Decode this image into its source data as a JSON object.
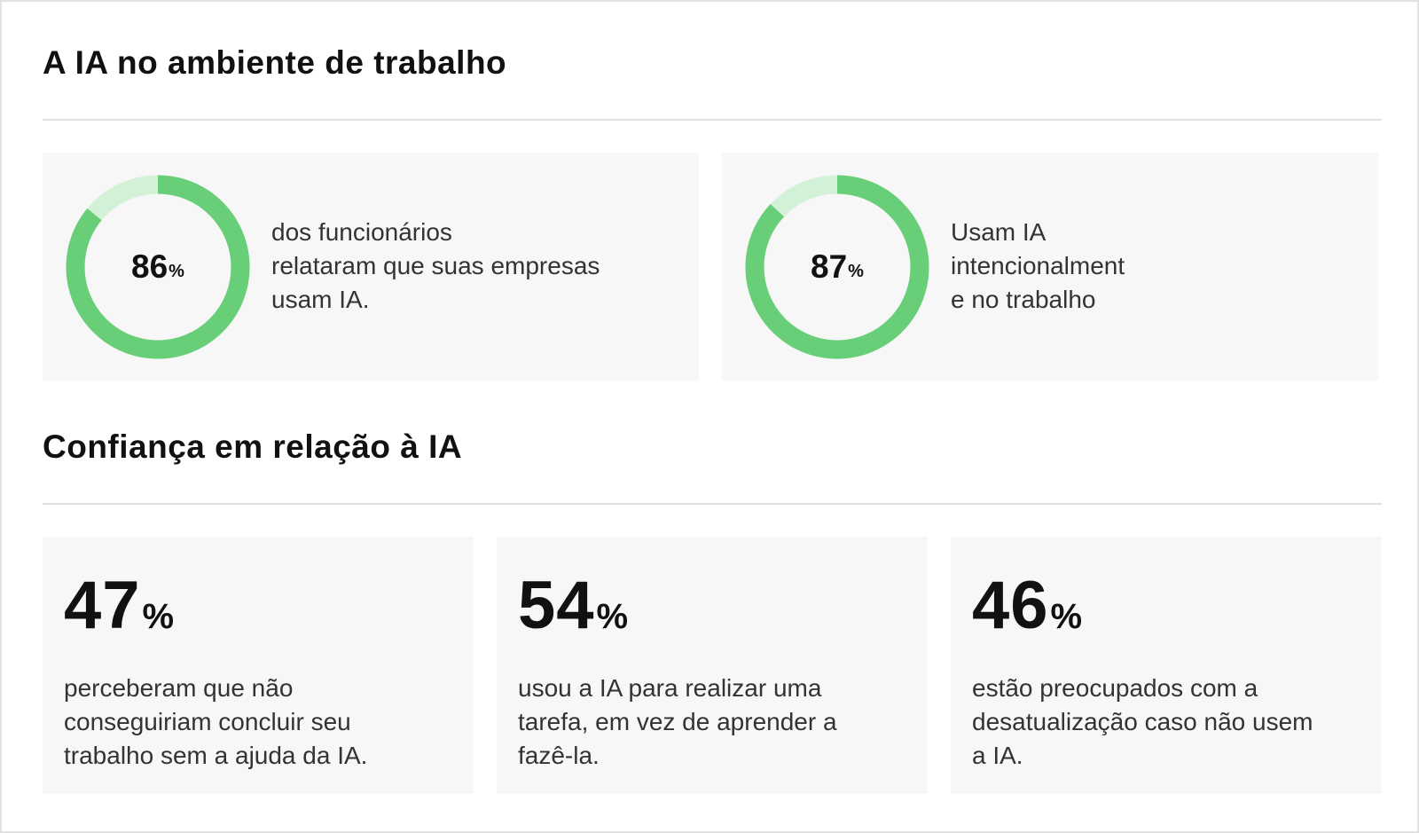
{
  "colors": {
    "ring": "#68cf78",
    "ring_track": "#d3f1d7"
  },
  "sections": {
    "workplace": {
      "title": "A IA no ambiente de trabalho"
    },
    "trust": {
      "title": "Confiança em relação à IA"
    }
  },
  "percent_sign": "%",
  "donuts": [
    {
      "value": 86,
      "value_label": "86",
      "description_lines": [
        "dos funcionários",
        "relataram que suas empresas",
        "usam IA."
      ]
    },
    {
      "value": 87,
      "value_label": "87",
      "description_lines": [
        "Usam IA",
        "intencionalment",
        "e no trabalho"
      ]
    }
  ],
  "stats": [
    {
      "value_label": "47",
      "description_lines": [
        "perceberam que não",
        "conseguiriam concluir seu",
        "trabalho sem a ajuda da IA."
      ]
    },
    {
      "value_label": "54",
      "description_lines": [
        "usou a IA para realizar uma",
        "tarefa, em vez de aprender a",
        "fazê-la."
      ]
    },
    {
      "value_label": "46",
      "description_lines": [
        "estão preocupados com a",
        "desatualização caso não usem",
        "a IA."
      ]
    }
  ],
  "chart_data": [
    {
      "type": "pie",
      "categories": [
        "dos funcionários relataram que suas empresas usam IA."
      ],
      "values": [
        86
      ]
    },
    {
      "type": "pie",
      "categories": [
        "Usam IA intencionalmente no trabalho"
      ],
      "values": [
        87
      ]
    },
    {
      "type": "table",
      "values": [
        47,
        54,
        46
      ]
    }
  ]
}
